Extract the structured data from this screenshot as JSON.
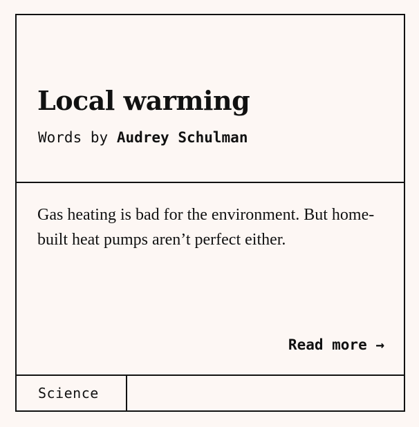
{
  "article": {
    "title": "Local warming",
    "byline_prefix": "Words by",
    "author": "Audrey Schulman",
    "excerpt": "Gas heating is bad for the environment. But home-built heat pumps aren’t perfect either.",
    "read_more_label": "Read more →",
    "category": "Science"
  },
  "colors": {
    "background": "#fdf7f4",
    "ink": "#111111"
  }
}
